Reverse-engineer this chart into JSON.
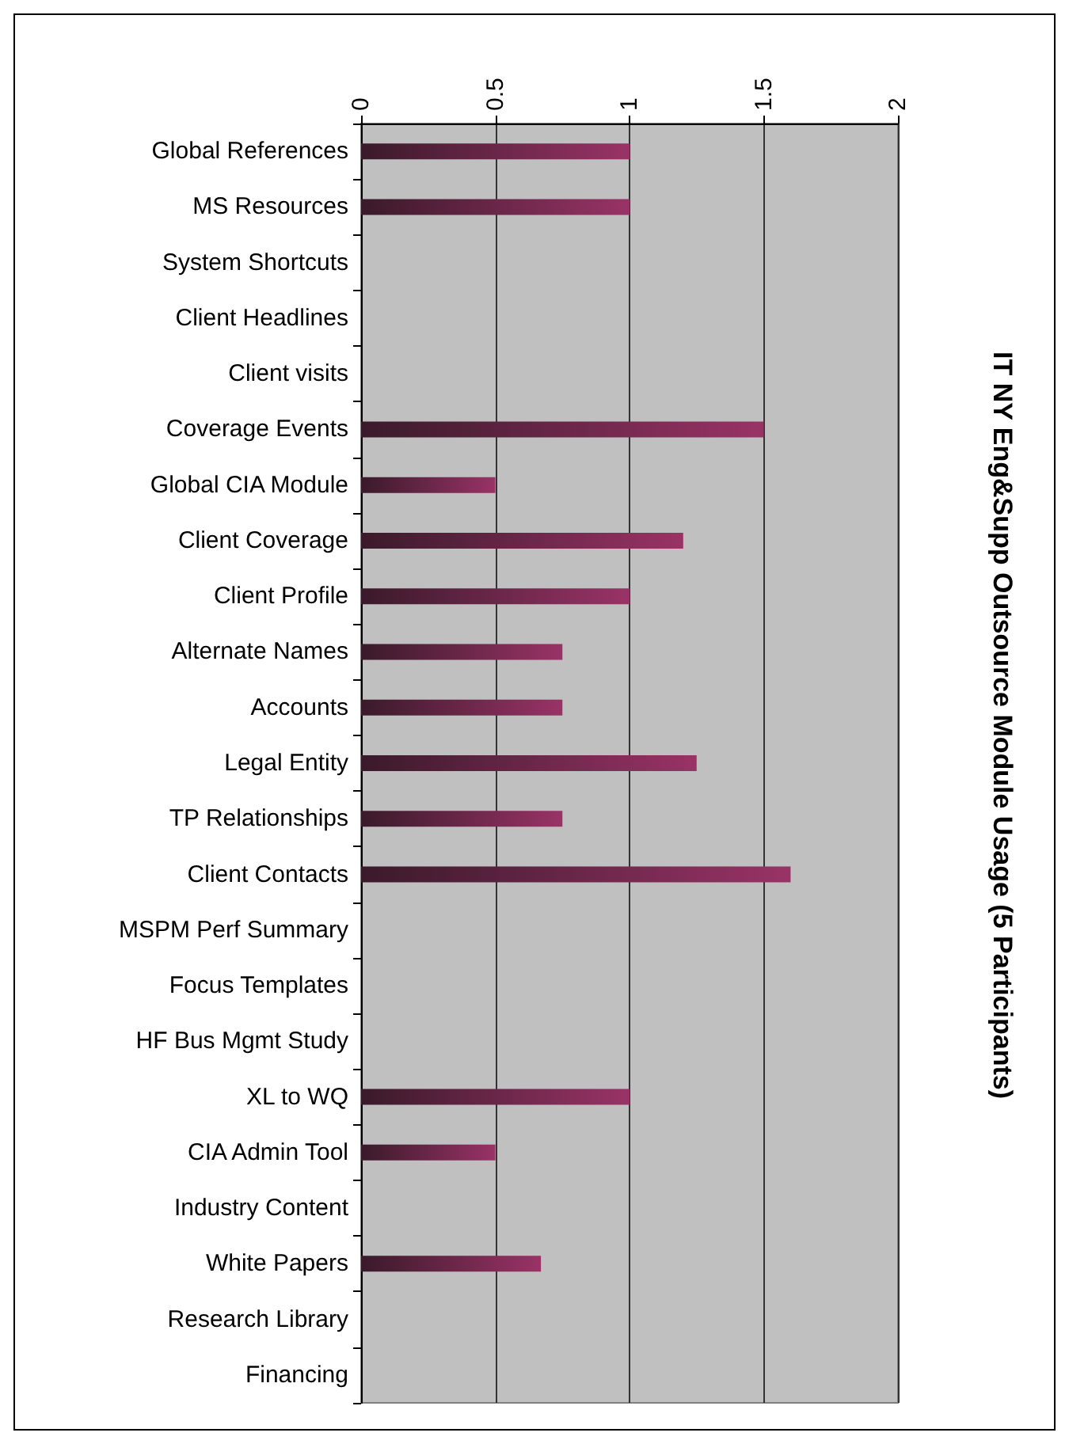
{
  "chart_data": {
    "type": "bar",
    "orientation": "horizontal",
    "title": "IT NY Eng&Supp Outsource Module Usage (5 Participants)",
    "categories": [
      "Global References",
      "MS Resources",
      "System Shortcuts",
      "Client Headlines",
      "Client visits",
      "Coverage Events",
      "Global CIA Module",
      "Client Coverage",
      "Client Profile",
      "Alternate Names",
      "Accounts",
      "Legal Entity",
      "TP Relationships",
      "Client Contacts",
      "MSPM Perf Summary",
      "Focus Templates",
      "HF Bus Mgmt Study",
      "XL to WQ",
      "CIA Admin Tool",
      "Industry Content",
      "White Papers",
      "Research Library",
      "Financing"
    ],
    "values": [
      1,
      1,
      0,
      0,
      0,
      1.5,
      0.5,
      1.2,
      1,
      0.75,
      0.75,
      1.25,
      0.75,
      1.6,
      0,
      0,
      0,
      1,
      0.5,
      0,
      0.67,
      0,
      0
    ],
    "color": "#993366",
    "xlim": [
      0,
      2
    ],
    "xticks": [
      0,
      0.5,
      1,
      1.5,
      2
    ],
    "grid": "x"
  }
}
